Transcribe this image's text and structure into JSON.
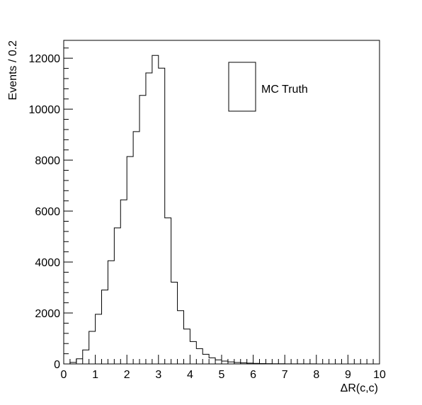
{
  "chart_data": {
    "type": "histogram",
    "title": "",
    "xlabel": "ΔR(c,c)",
    "ylabel": "Events / 0.2",
    "xlim": [
      0,
      10
    ],
    "ylim": [
      0,
      12700
    ],
    "bin_width": 0.2,
    "x_ticks": [
      0,
      1,
      2,
      3,
      4,
      5,
      6,
      7,
      8,
      9,
      10
    ],
    "y_ticks": [
      0,
      2000,
      4000,
      6000,
      8000,
      10000,
      12000
    ],
    "grid": false,
    "legend_position": "top-right",
    "series": [
      {
        "name": "MC Truth",
        "color": "#000000",
        "fill": "none",
        "bin_edges_start": 0,
        "values": [
          0,
          60,
          200,
          550,
          1280,
          1950,
          2900,
          4050,
          5340,
          6440,
          8140,
          9120,
          10540,
          11420,
          12110,
          11610,
          5730,
          3210,
          2090,
          1370,
          880,
          600,
          380,
          240,
          160,
          110,
          80,
          55,
          40,
          30,
          20,
          15,
          10,
          8,
          6,
          5,
          4,
          3,
          2,
          2,
          1,
          1,
          1,
          1,
          0,
          0,
          0,
          0,
          0,
          0
        ]
      }
    ]
  }
}
